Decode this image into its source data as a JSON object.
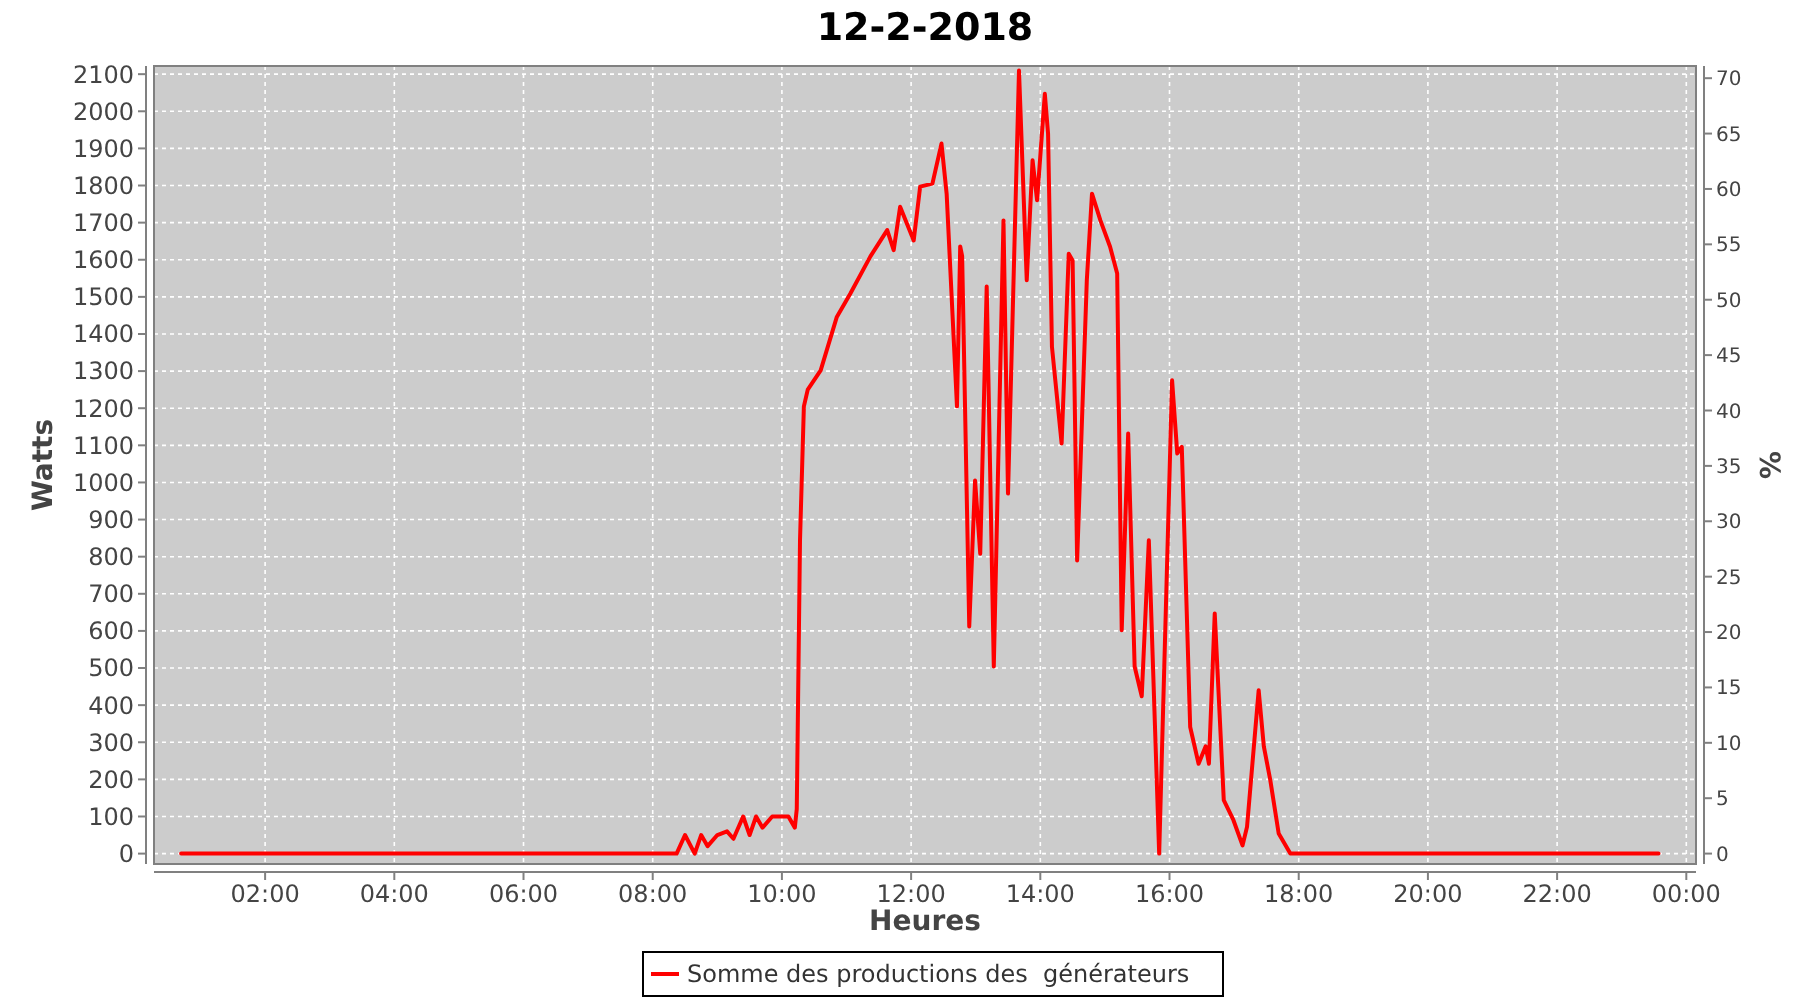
{
  "chart_data": {
    "type": "line",
    "title": "12-2-2018",
    "xlabel": "Heures",
    "ylabel": "Watts",
    "y2label": "%",
    "xlim": [
      0.28,
      24.15
    ],
    "xticks": [
      {
        "value": 2,
        "label": "02:00"
      },
      {
        "value": 4,
        "label": "04:00"
      },
      {
        "value": 6,
        "label": "06:00"
      },
      {
        "value": 8,
        "label": "08:00"
      },
      {
        "value": 10,
        "label": "10:00"
      },
      {
        "value": 12,
        "label": "12:00"
      },
      {
        "value": 14,
        "label": "14:00"
      },
      {
        "value": 16,
        "label": "16:00"
      },
      {
        "value": 18,
        "label": "18:00"
      },
      {
        "value": 20,
        "label": "20:00"
      },
      {
        "value": 22,
        "label": "22:00"
      },
      {
        "value": 24,
        "label": "00:00"
      }
    ],
    "ylim": [
      -28,
      2122
    ],
    "yticks": [
      0,
      100,
      200,
      300,
      400,
      500,
      600,
      700,
      800,
      900,
      1000,
      1100,
      1200,
      1300,
      1400,
      1500,
      1600,
      1700,
      1800,
      1900,
      2000,
      2100
    ],
    "y2lim": [
      -0.94,
      71.1
    ],
    "y2ticks": [
      0,
      5,
      10,
      15,
      20,
      25,
      30,
      35,
      40,
      45,
      50,
      55,
      60,
      65,
      70
    ],
    "grid": true,
    "legend": "bottom",
    "series": [
      {
        "name": "Somme des productions des  générateurs",
        "color": "#ff0000",
        "x": [
          0.7,
          8.37,
          8.5,
          8.65,
          8.75,
          8.85,
          9.0,
          9.15,
          9.25,
          9.4,
          9.5,
          9.6,
          9.7,
          9.85,
          10.1,
          10.2,
          10.23,
          10.28,
          10.34,
          10.4,
          10.6,
          10.85,
          11.06,
          11.37,
          11.63,
          11.73,
          11.83,
          12.04,
          12.14,
          12.33,
          12.47,
          12.55,
          12.71,
          12.76,
          12.79,
          12.9,
          12.99,
          13.07,
          13.17,
          13.28,
          13.43,
          13.5,
          13.67,
          13.79,
          13.88,
          13.95,
          14.07,
          14.12,
          14.18,
          14.33,
          14.44,
          14.5,
          14.57,
          14.72,
          14.8,
          14.93,
          15.08,
          15.19,
          15.26,
          15.36,
          15.46,
          15.57,
          15.68,
          15.84,
          16.04,
          16.12,
          16.19,
          16.32,
          16.45,
          16.56,
          16.61,
          16.7,
          16.84,
          16.99,
          17.13,
          17.2,
          17.38,
          17.46,
          17.56,
          17.69,
          17.87,
          23.57
        ],
        "values": [
          0,
          0,
          50,
          0,
          50,
          20,
          50,
          60,
          40,
          100,
          50,
          100,
          70,
          100,
          100,
          70,
          120,
          843,
          1205,
          1250,
          1302,
          1446,
          1509,
          1609,
          1680,
          1626,
          1743,
          1652,
          1797,
          1805,
          1913,
          1778,
          1205,
          1636,
          1610,
          612,
          1005,
          808,
          1528,
          504,
          1706,
          970,
          2110,
          1545,
          1868,
          1760,
          2047,
          1940,
          1366,
          1105,
          1616,
          1598,
          790,
          1545,
          1778,
          1706,
          1635,
          1563,
          602,
          1132,
          504,
          424,
          844,
          0,
          1275,
          1078,
          1096,
          341,
          242,
          289,
          242,
          647,
          144,
          90,
          22,
          72,
          440,
          289,
          198,
          54,
          0,
          0
        ]
      }
    ]
  }
}
